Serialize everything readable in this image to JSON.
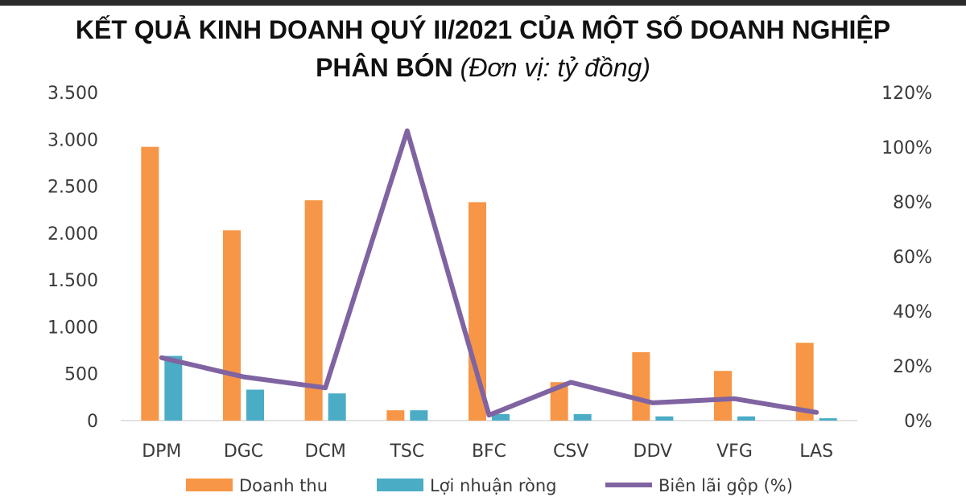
{
  "header": {
    "title_line1": "KẾT QUẢ KINH DOANH QUÝ II/2021 CỦA MỘT SỐ DOANH NGHIỆP",
    "title_line2": "PHÂN BÓN",
    "subtitle": "(Đơn vị: tỷ đồng)"
  },
  "chart_data": {
    "type": "bar",
    "categories": [
      "DPM",
      "DGC",
      "DCM",
      "TSC",
      "BFC",
      "CSV",
      "DDV",
      "VFG",
      "LAS"
    ],
    "series": [
      {
        "name": "Doanh thu",
        "type": "bar",
        "axis": "left",
        "color": "#F79646",
        "values": [
          2920,
          2030,
          2350,
          110,
          2330,
          410,
          730,
          530,
          830
        ]
      },
      {
        "name": "Lợi nhuận ròng",
        "type": "bar",
        "axis": "left",
        "color": "#4BACC6",
        "values": [
          690,
          330,
          290,
          110,
          70,
          70,
          45,
          45,
          25
        ]
      },
      {
        "name": "Biên lãi gộp (%)",
        "type": "line",
        "axis": "right",
        "color": "#8064A2",
        "values": [
          23,
          16,
          12,
          106,
          2,
          14,
          6.5,
          8,
          3
        ]
      }
    ],
    "left_axis": {
      "ylim": [
        0,
        3500
      ],
      "ticks": [
        0,
        500,
        1000,
        1500,
        2000,
        2500,
        3000,
        3500
      ],
      "tick_labels": [
        "0",
        "500",
        "1.000",
        "1.500",
        "2.000",
        "2.500",
        "3.000",
        "3.500"
      ]
    },
    "right_axis": {
      "ylim": [
        0,
        120
      ],
      "ticks": [
        0,
        20,
        40,
        60,
        80,
        100,
        120
      ],
      "tick_labels": [
        "0%",
        "20%",
        "40%",
        "60%",
        "80%",
        "100%",
        "120%"
      ]
    },
    "grid": false,
    "legend_position": "bottom"
  }
}
